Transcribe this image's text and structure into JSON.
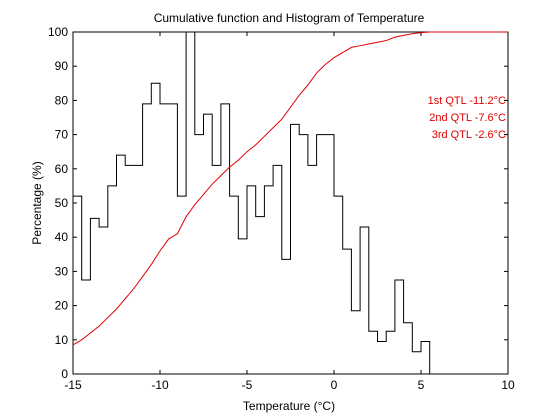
{
  "chart_data": {
    "type": "line",
    "title": "Cumulative function and Histogram of Temperature",
    "xlabel": "Temperature (°C)",
    "ylabel": "Percentage (%)",
    "xlim": [
      -15,
      10
    ],
    "ylim": [
      0,
      100
    ],
    "xticks": [
      -15,
      -10,
      -5,
      0,
      5,
      10
    ],
    "yticks": [
      0,
      10,
      20,
      30,
      40,
      50,
      60,
      70,
      80,
      90,
      100
    ],
    "grid": false,
    "series": [
      {
        "style": "stairs",
        "color": "#000000",
        "x": [
          -15,
          -14.5,
          -14,
          -13.5,
          -13,
          -12.5,
          -12,
          -11.5,
          -11,
          -10.5,
          -10,
          -9.5,
          -9,
          -8.5,
          -8,
          -7.5,
          -7,
          -6.5,
          -6,
          -5.5,
          -5,
          -4.5,
          -4,
          -3.5,
          -3,
          -2.5,
          -2,
          -1.5,
          -1,
          -0.5,
          0,
          0.5,
          1,
          1.5,
          2,
          2.5,
          3,
          3.5,
          4,
          4.5,
          5,
          5.5
        ],
        "values": [
          52,
          27.5,
          45.5,
          43,
          55,
          64,
          61,
          61,
          79,
          85,
          79,
          79,
          52,
          100,
          70,
          76,
          61,
          79,
          52,
          39.5,
          55,
          46,
          55,
          61,
          33.5,
          73,
          70,
          61,
          70,
          70,
          52,
          36.5,
          18.5,
          43,
          12.5,
          9.5,
          12.5,
          27.5,
          15,
          6.5,
          9.5,
          0
        ]
      },
      {
        "style": "line",
        "color": "#e00000",
        "x": [
          -15,
          -14.5,
          -14,
          -13.5,
          -13,
          -12.5,
          -12,
          -11.5,
          -11,
          -10.5,
          -10,
          -9.5,
          -9,
          -8.5,
          -8,
          -7.5,
          -7,
          -6.5,
          -6,
          -5.5,
          -5,
          -4.5,
          -4,
          -3.5,
          -3,
          -2.5,
          -2,
          -1.5,
          -1,
          -0.5,
          0,
          0.5,
          1,
          1.5,
          2,
          2.5,
          3,
          3.5,
          4,
          4.5,
          5,
          5.5,
          6,
          10
        ],
        "values": [
          8.5,
          10,
          12,
          14,
          16.5,
          19,
          22,
          25,
          28.5,
          32,
          36,
          39.5,
          41,
          46,
          49.5,
          52.5,
          55.5,
          58,
          60.5,
          62.5,
          65,
          67,
          69.5,
          72,
          74.5,
          78,
          81.5,
          84.5,
          88,
          90.5,
          92.5,
          94,
          95.5,
          96,
          96.5,
          97,
          97.5,
          98.5,
          99,
          99.5,
          99.8,
          100,
          100,
          100
        ]
      }
    ],
    "annotations": [
      {
        "text": "1st QTL -11.2°C",
        "color": "#e00000"
      },
      {
        "text": "2nd QTL -7.6°C",
        "color": "#e00000"
      },
      {
        "text": "3rd QTL -2.6°C",
        "color": "#e00000"
      }
    ]
  }
}
